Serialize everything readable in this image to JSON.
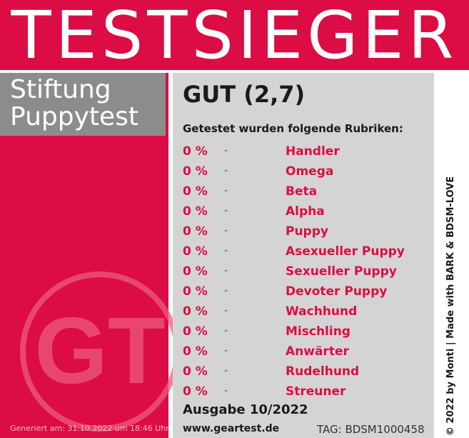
{
  "header": {
    "title": "TESTSIEGER"
  },
  "organization": {
    "line1": "Stiftung",
    "line2": "Puppytest"
  },
  "logo": {
    "letters": "GT"
  },
  "generated": "Generiert am: 31.10.2022 um 18:46 Uhr",
  "grade": "GUT (2,7)",
  "categories_heading": "Getestet wurden folgende Rubriken:",
  "categories": [
    {
      "pct": "0 %",
      "dash": "-",
      "name": "Handler"
    },
    {
      "pct": "0 %",
      "dash": "-",
      "name": "Omega"
    },
    {
      "pct": "0 %",
      "dash": "-",
      "name": "Beta"
    },
    {
      "pct": "0 %",
      "dash": "-",
      "name": "Alpha"
    },
    {
      "pct": "0 %",
      "dash": "-",
      "name": "Puppy"
    },
    {
      "pct": "0 %",
      "dash": "-",
      "name": "Asexueller Puppy"
    },
    {
      "pct": "0 %",
      "dash": "-",
      "name": "Sexueller Puppy"
    },
    {
      "pct": "0 %",
      "dash": "-",
      "name": "Devoter Puppy"
    },
    {
      "pct": "0 %",
      "dash": "-",
      "name": "Wachhund"
    },
    {
      "pct": "0 %",
      "dash": "-",
      "name": "Mischling"
    },
    {
      "pct": "0 %",
      "dash": "-",
      "name": "Anwärter"
    },
    {
      "pct": "0 %",
      "dash": "-",
      "name": "Rudelhund"
    },
    {
      "pct": "0 %",
      "dash": "-",
      "name": "Streuner"
    }
  ],
  "edition": "Ausgabe 10/2022",
  "website": "www.geartest.de",
  "tag": "TAG: BDSM1000458",
  "copyright": "© 2022 by Monti | Made with BARK & BDSM-LOVE",
  "colors": {
    "brand_red": "#dc0c44",
    "panel_grey": "#d4d4d4",
    "org_grey": "#8c8c8c",
    "text_dark": "#1a1a1a"
  }
}
